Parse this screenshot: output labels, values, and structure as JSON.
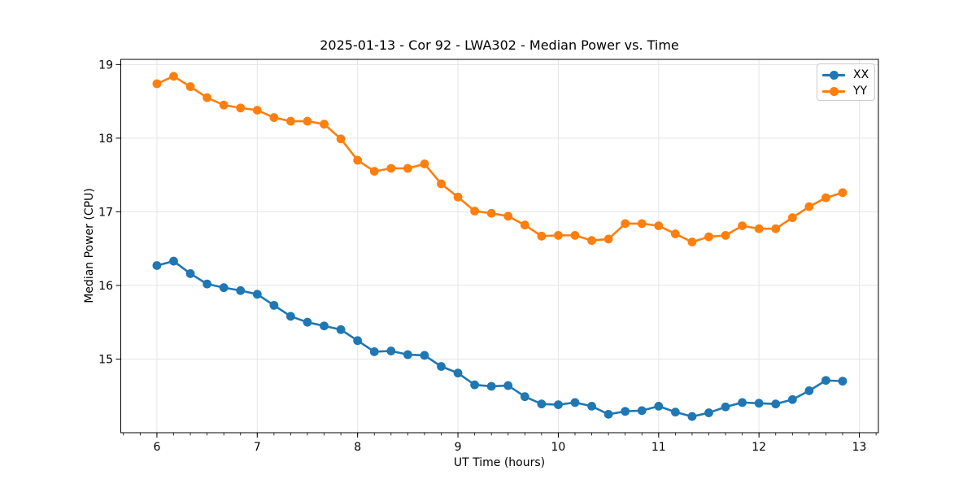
{
  "figure": {
    "title": "2025-01-13 - Cor 92 - LWA302 - Median Power vs. Time"
  },
  "chart_data": {
    "type": "line",
    "title": "2025-01-13 - Cor 92 - LWA302 - Median Power vs. Time",
    "xlabel": "UT Time (hours)",
    "ylabel": "Median Power (CPU)",
    "xlim": [
      5.64,
      13.19
    ],
    "ylim": [
      14.0,
      19.07
    ],
    "xticks": [
      6,
      7,
      8,
      9,
      10,
      11,
      12,
      13
    ],
    "yticks": [
      15,
      16,
      17,
      18,
      19
    ],
    "x_minor_step": 0.166667,
    "grid": true,
    "legend_position": "upper right",
    "marker": "circle",
    "x": [
      6.0,
      6.1667,
      6.3333,
      6.5,
      6.6667,
      6.8333,
      7.0,
      7.1667,
      7.3333,
      7.5,
      7.6667,
      7.8333,
      8.0,
      8.1667,
      8.3333,
      8.5,
      8.6667,
      8.8333,
      9.0,
      9.1667,
      9.3333,
      9.5,
      9.6667,
      9.8333,
      10.0,
      10.1667,
      10.3333,
      10.5,
      10.6667,
      10.8333,
      11.0,
      11.1667,
      11.3333,
      11.5,
      11.6667,
      11.8333,
      12.0,
      12.1667,
      12.3333,
      12.5,
      12.6667,
      12.8333
    ],
    "series": [
      {
        "name": "XX",
        "color": "#1f77b4",
        "values": [
          16.27,
          16.33,
          16.16,
          16.02,
          15.97,
          15.93,
          15.88,
          15.73,
          15.58,
          15.5,
          15.45,
          15.4,
          15.25,
          15.1,
          15.11,
          15.06,
          15.05,
          14.9,
          14.81,
          14.65,
          14.63,
          14.64,
          14.49,
          14.39,
          14.38,
          14.41,
          14.36,
          14.25,
          14.29,
          14.3,
          14.36,
          14.28,
          14.22,
          14.27,
          14.35,
          14.41,
          14.4,
          14.39,
          14.45,
          14.57,
          14.71,
          14.7
        ]
      },
      {
        "name": "YY",
        "color": "#ff7f0e",
        "values": [
          18.74,
          18.84,
          18.7,
          18.55,
          18.45,
          18.41,
          18.38,
          18.28,
          18.23,
          18.23,
          18.19,
          17.99,
          17.7,
          17.55,
          17.59,
          17.59,
          17.65,
          17.38,
          17.2,
          17.01,
          16.98,
          16.94,
          16.82,
          16.67,
          16.68,
          16.68,
          16.61,
          16.63,
          16.84,
          16.84,
          16.81,
          16.7,
          16.59,
          16.66,
          16.68,
          16.81,
          16.77,
          16.77,
          16.92,
          17.07,
          17.19,
          17.26
        ]
      }
    ]
  },
  "style_colors": {
    "grid": "#e5e5e5",
    "spine": "#000000",
    "tick": "#000000",
    "legend_border": "#cccccc"
  }
}
